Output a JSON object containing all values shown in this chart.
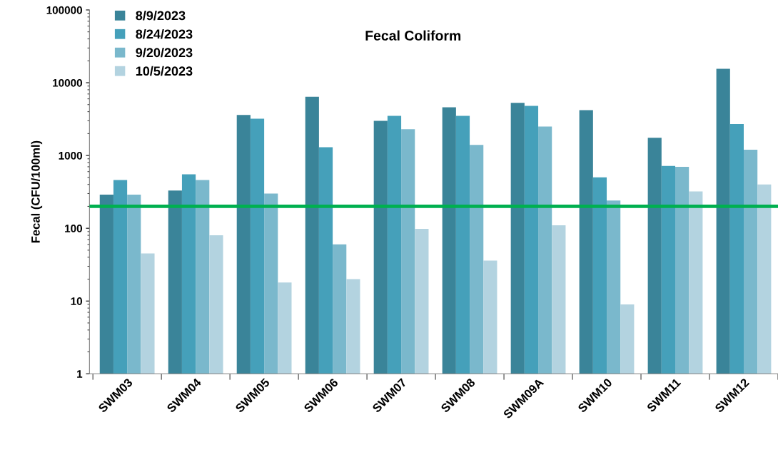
{
  "chart_data": {
    "type": "bar",
    "title": "Fecal Coliform",
    "ylabel": "Fecal (CFU/100ml)",
    "categories": [
      "SWM03",
      "SWM04",
      "SWM05",
      "SWM06",
      "SWM07",
      "SWM08",
      "SWM09A",
      "SWM10",
      "SWM11",
      "SWM12"
    ],
    "series": [
      {
        "name": "8/9/2023",
        "color": "#3a8499",
        "values": [
          290,
          330,
          3600,
          6400,
          3000,
          4600,
          5300,
          4200,
          1750,
          15500
        ]
      },
      {
        "name": "8/24/2023",
        "color": "#45a0ba",
        "values": [
          460,
          550,
          3200,
          1300,
          3500,
          3500,
          4800,
          500,
          720,
          2700
        ]
      },
      {
        "name": "9/20/2023",
        "color": "#7ab8cc",
        "values": [
          290,
          460,
          300,
          60,
          2300,
          1400,
          2500,
          240,
          700,
          1200
        ]
      },
      {
        "name": "10/5/2023",
        "color": "#b3d3e0",
        "values": [
          45,
          80,
          18,
          20,
          98,
          36,
          110,
          9,
          320,
          400
        ]
      }
    ],
    "log": true,
    "ylim": [
      1,
      100000
    ],
    "yticks": [
      1,
      10,
      100,
      1000,
      10000,
      100000
    ],
    "ref_lines": [
      {
        "axis": "y",
        "value": 200,
        "color": "#00b050",
        "line_style": "solid"
      }
    ],
    "grid": false,
    "legend": "top left"
  }
}
